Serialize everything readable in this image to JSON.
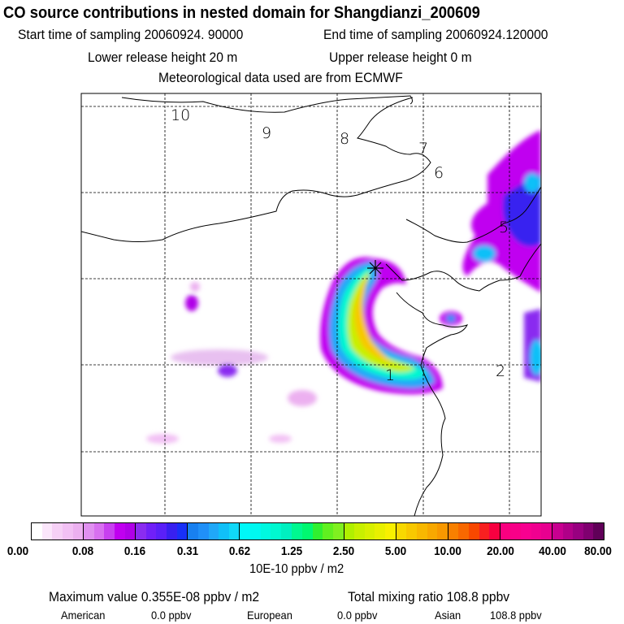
{
  "header": {
    "title": "CO  source contributions in nested domain for Shangdianzi_200609",
    "start_time": "Start time of sampling 20060924. 90000",
    "end_time": "End time of sampling 20060924.120000",
    "lower_release": "Lower release height   20 m",
    "upper_release": "Upper release height    0 m",
    "met_data": "Meteorological data used are from ECMWF"
  },
  "map": {
    "contour_labels": [
      "10",
      "9",
      "8",
      "7",
      "6",
      "5",
      "2",
      "1"
    ],
    "receptor_marker": "plus-cross"
  },
  "colorbar": {
    "labels": [
      "0.00",
      "0.08",
      "0.16",
      "0.31",
      "0.62",
      "1.25",
      "2.50",
      "5.00",
      "10.00",
      "20.00",
      "40.00",
      "80.00"
    ],
    "unit": "10E-10 ppbv / m2",
    "groups": [
      [
        "#ffffff",
        "#fbe6fb",
        "#f6d0f6",
        "#f2c0f4",
        "#ecb0f0"
      ],
      [
        "#e090f0",
        "#d870f0",
        "#c840f0",
        "#c000f0",
        "#b000e8"
      ],
      [
        "#8a2cf0",
        "#7020f8",
        "#5a20f8",
        "#3820f0",
        "#1830f8"
      ],
      [
        "#1880f0",
        "#2090f8",
        "#20a8f8",
        "#10c0f8",
        "#10d8f8"
      ],
      [
        "#00f8f8",
        "#00f8f0",
        "#00f8e0",
        "#00f8d0",
        "#00f0c0"
      ],
      [
        "#00f890",
        "#00f870",
        "#30f030",
        "#60f020",
        "#80f020"
      ],
      [
        "#b0f000",
        "#c8f000",
        "#d8f000",
        "#e8f000",
        "#f8f000"
      ],
      [
        "#f8d800",
        "#f8c800",
        "#f8b800",
        "#f8a800",
        "#f89800"
      ],
      [
        "#f88000",
        "#f86800",
        "#f84800",
        "#f82020",
        "#f80040"
      ],
      [
        "#f80080",
        "#f80088",
        "#f80090",
        "#f00090",
        "#e80090"
      ],
      [
        "#c80090",
        "#b00088",
        "#980080",
        "#800070",
        "#600058"
      ]
    ]
  },
  "summary": {
    "max_value": "Maximum value  0.355E-08 ppbv / m2",
    "total": "Total mixing ratio     108.8 ppbv",
    "american_label": "American",
    "american_value": "0.0 ppbv",
    "european_label": "European",
    "european_value": "0.0 ppbv",
    "asian_label": "Asian",
    "asian_value": "108.8 ppbv"
  }
}
